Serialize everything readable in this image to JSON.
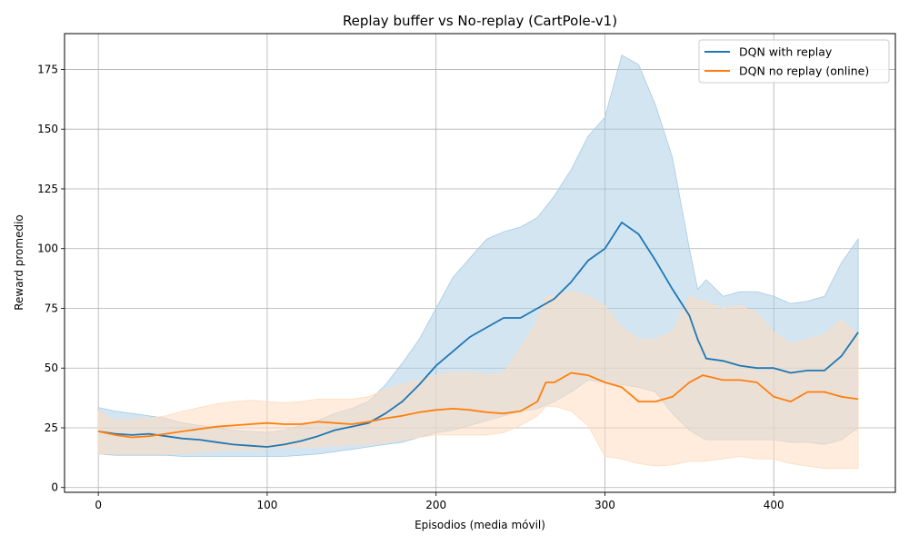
{
  "chart_data": {
    "type": "line",
    "title": "Replay buffer vs No-replay (CartPole-v1)",
    "xlabel": "Episodios (media móvil)",
    "ylabel": "Reward promedio",
    "xlim": [
      -20,
      472
    ],
    "ylim": [
      -2,
      190
    ],
    "xticks": [
      0,
      100,
      200,
      300,
      400
    ],
    "yticks": [
      0,
      25,
      50,
      75,
      100,
      125,
      150,
      175
    ],
    "grid": true,
    "legend_position": "top-right",
    "series": [
      {
        "name": "DQN with replay",
        "color": "#1f77b4",
        "fill_color": "#a6cbe3",
        "x": [
          0,
          10,
          20,
          30,
          40,
          50,
          60,
          70,
          80,
          90,
          100,
          110,
          120,
          130,
          140,
          150,
          160,
          170,
          180,
          190,
          200,
          210,
          220,
          230,
          240,
          250,
          260,
          270,
          280,
          290,
          300,
          310,
          320,
          330,
          340,
          350,
          355,
          360,
          370,
          380,
          390,
          400,
          410,
          420,
          430,
          440,
          450
        ],
        "y": [
          23.5,
          22.5,
          22,
          22.5,
          21.5,
          20.5,
          20,
          19,
          18,
          17.5,
          17,
          18,
          19.5,
          21.5,
          24,
          25.5,
          27,
          31,
          36,
          43,
          51,
          57,
          63,
          67,
          71,
          71,
          75,
          79,
          86,
          95,
          100,
          111,
          106,
          95,
          83,
          72,
          62,
          54,
          53,
          51,
          50,
          50,
          48,
          49,
          49,
          55,
          65
        ],
        "upper": [
          33.5,
          32,
          31,
          30,
          29,
          27,
          26,
          25,
          24,
          23.5,
          23,
          24,
          26,
          28,
          31,
          33,
          36,
          43,
          52,
          62,
          75,
          88,
          96,
          104,
          107,
          109,
          113,
          122,
          133,
          147,
          155,
          181,
          177,
          160,
          138,
          100,
          83,
          87,
          80,
          82,
          82,
          80,
          77,
          78,
          80,
          94,
          104
        ],
        "lower": [
          14,
          13.5,
          13.5,
          13.5,
          13.5,
          13,
          13,
          13,
          13,
          13,
          13,
          13,
          13.5,
          14,
          15,
          16,
          17,
          18,
          19,
          21,
          23,
          24,
          26,
          28,
          30,
          32,
          33,
          36,
          40,
          45,
          44,
          43,
          42,
          40,
          31,
          24,
          22,
          20,
          20,
          20,
          20,
          20,
          19,
          19,
          18,
          20,
          25
        ]
      },
      {
        "name": "DQN no replay (online)",
        "color": "#ff7f0e",
        "fill_color": "#ffdcbf",
        "x": [
          0,
          10,
          20,
          30,
          40,
          50,
          60,
          70,
          80,
          90,
          100,
          110,
          120,
          130,
          140,
          150,
          160,
          170,
          180,
          190,
          200,
          210,
          220,
          230,
          240,
          250,
          260,
          265,
          270,
          280,
          290,
          300,
          310,
          320,
          330,
          340,
          350,
          358,
          370,
          380,
          390,
          400,
          410,
          420,
          430,
          440,
          450
        ],
        "y": [
          23.5,
          22,
          21,
          21.5,
          22.5,
          23.5,
          24.5,
          25.5,
          26,
          26.5,
          27,
          26.5,
          26.5,
          27.5,
          27,
          26.5,
          27.5,
          29,
          30,
          31.5,
          32.5,
          33,
          32.5,
          31.5,
          31,
          32,
          36,
          44,
          44,
          48,
          47,
          44,
          42,
          36,
          36,
          38,
          44,
          47,
          45,
          45,
          44,
          38,
          36,
          40,
          40,
          38,
          37
        ],
        "upper": [
          32,
          28,
          28.5,
          29,
          30,
          32,
          33.5,
          35,
          36,
          36.5,
          36,
          35.5,
          36,
          37,
          37,
          37,
          38,
          41,
          43,
          45,
          47,
          48,
          48,
          47,
          48,
          58,
          70,
          80,
          80,
          82,
          80,
          76,
          67,
          62,
          62,
          65,
          80,
          78,
          75,
          76,
          73,
          65,
          60,
          62,
          64,
          70,
          64
        ],
        "lower": [
          14,
          14,
          14,
          14,
          14,
          14.5,
          15,
          15.5,
          16,
          16,
          16.5,
          17,
          17,
          17,
          17.5,
          18,
          18,
          19,
          20,
          21,
          22,
          22,
          22,
          22,
          23,
          26,
          30,
          34,
          34,
          32,
          26,
          13,
          12,
          10,
          9,
          9.5,
          11,
          11,
          12,
          13,
          12,
          12,
          10,
          9,
          8,
          8,
          8
        ]
      }
    ]
  }
}
